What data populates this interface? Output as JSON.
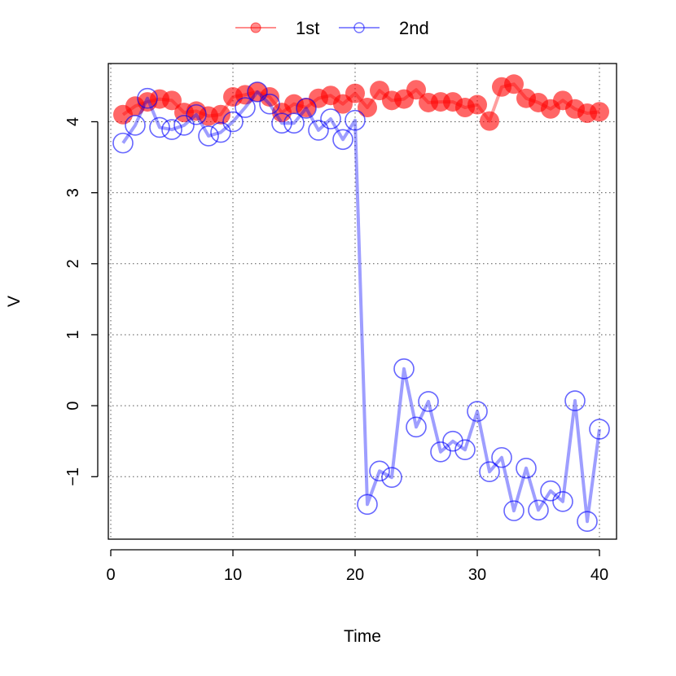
{
  "chart_data": {
    "type": "line",
    "xlabel": "Time",
    "ylabel": "V",
    "xlim": [
      -0.2,
      41.4
    ],
    "ylim": [
      -1.88,
      4.82
    ],
    "x_ticks": [
      0,
      10,
      20,
      30,
      40
    ],
    "y_ticks": [
      -1,
      0,
      1,
      2,
      3,
      4
    ],
    "x_tick_labels": [
      "0",
      "10",
      "20",
      "30",
      "40"
    ],
    "y_tick_labels": [
      "−1",
      "0",
      "1",
      "2",
      "3",
      "4"
    ],
    "grid": true,
    "legend_position": "top",
    "x": [
      1,
      2,
      3,
      4,
      5,
      6,
      7,
      8,
      9,
      10,
      11,
      12,
      13,
      14,
      15,
      16,
      17,
      18,
      19,
      20,
      21,
      22,
      23,
      24,
      25,
      26,
      27,
      28,
      29,
      30,
      31,
      32,
      33,
      34,
      35,
      36,
      37,
      38,
      39,
      40
    ],
    "series": [
      {
        "name": "1st",
        "color": "#ff0000",
        "marker": "filled-circle",
        "values": [
          4.1,
          4.22,
          4.28,
          4.32,
          4.3,
          4.13,
          4.15,
          4.08,
          4.1,
          4.35,
          4.38,
          4.42,
          4.35,
          4.13,
          4.25,
          4.2,
          4.33,
          4.37,
          4.25,
          4.4,
          4.2,
          4.44,
          4.3,
          4.32,
          4.45,
          4.27,
          4.28,
          4.28,
          4.2,
          4.24,
          4.01,
          4.49,
          4.53,
          4.33,
          4.27,
          4.18,
          4.3,
          4.18,
          4.12,
          4.14
        ]
      },
      {
        "name": "2nd",
        "color": "#0000ff",
        "marker": "open-circle",
        "values": [
          3.7,
          3.95,
          4.33,
          3.92,
          3.89,
          3.95,
          4.1,
          3.8,
          3.85,
          4.0,
          4.2,
          4.42,
          4.25,
          3.98,
          3.98,
          4.19,
          3.88,
          4.04,
          3.75,
          4.02,
          -1.39,
          -0.92,
          -1.01,
          0.52,
          -0.3,
          0.06,
          -0.65,
          -0.5,
          -0.62,
          -0.08,
          -0.93,
          -0.73,
          -1.48,
          -0.88,
          -1.47,
          -1.2,
          -1.35,
          0.07,
          -1.63,
          -0.33
        ]
      }
    ]
  }
}
